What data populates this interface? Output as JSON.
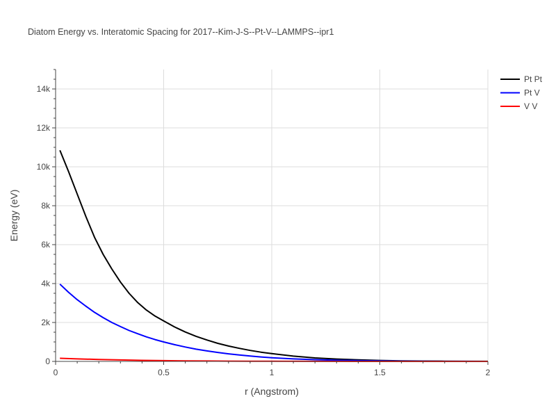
{
  "chart_data": {
    "type": "line",
    "title": "Diatom Energy vs. Interatomic Spacing for 2017--Kim-J-S--Pt-V--LAMMPS--ipr1",
    "xlabel": "r (Angstrom)",
    "ylabel": "Energy (eV)",
    "xlim": [
      0,
      2
    ],
    "ylim": [
      0,
      15000
    ],
    "xticks": [
      0,
      0.5,
      1,
      1.5,
      2
    ],
    "xtick_labels": [
      "0",
      "0.5",
      "1",
      "1.5",
      "2"
    ],
    "yticks": [
      0,
      2000,
      4000,
      6000,
      8000,
      10000,
      12000,
      14000
    ],
    "ytick_labels": [
      "0",
      "2k",
      "4k",
      "6k",
      "8k",
      "10k",
      "12k",
      "14k"
    ],
    "grid": true,
    "legend_position": "top-right",
    "series": [
      {
        "name": "Pt Pt",
        "color": "#000000",
        "x": [
          0.02,
          0.06,
          0.1,
          0.14,
          0.18,
          0.22,
          0.26,
          0.3,
          0.34,
          0.38,
          0.42,
          0.46,
          0.5,
          0.55,
          0.6,
          0.65,
          0.7,
          0.75,
          0.8,
          0.85,
          0.9,
          0.95,
          1.0,
          1.1,
          1.2,
          1.3,
          1.4,
          1.5,
          1.6,
          1.7,
          1.8,
          1.9,
          2.0
        ],
        "y": [
          10850,
          9750,
          8600,
          7450,
          6380,
          5500,
          4750,
          4080,
          3500,
          3020,
          2640,
          2330,
          2080,
          1770,
          1510,
          1290,
          1100,
          930,
          790,
          670,
          565,
          475,
          400,
          270,
          180,
          120,
          80,
          50,
          30,
          18,
          10,
          5,
          2
        ]
      },
      {
        "name": "Pt V",
        "color": "#0000ff",
        "x": [
          0.02,
          0.06,
          0.1,
          0.14,
          0.18,
          0.22,
          0.26,
          0.3,
          0.34,
          0.38,
          0.42,
          0.46,
          0.5,
          0.55,
          0.6,
          0.65,
          0.7,
          0.75,
          0.8,
          0.85,
          0.9,
          0.95,
          1.0,
          1.1,
          1.2,
          1.3,
          1.4,
          1.5,
          1.6,
          1.7,
          1.8,
          1.9,
          2.0
        ],
        "y": [
          3970,
          3550,
          3170,
          2840,
          2520,
          2250,
          2000,
          1790,
          1590,
          1420,
          1260,
          1120,
          1000,
          860,
          740,
          630,
          540,
          460,
          390,
          330,
          275,
          230,
          190,
          130,
          88,
          58,
          38,
          24,
          15,
          9,
          5,
          3,
          1
        ]
      },
      {
        "name": "V V",
        "color": "#ff0000",
        "x": [
          0.02,
          0.1,
          0.2,
          0.3,
          0.4,
          0.5,
          0.6,
          0.7,
          0.8,
          0.9,
          1.0,
          1.2,
          1.4,
          1.6,
          1.8,
          2.0
        ],
        "y": [
          160,
          130,
          100,
          75,
          55,
          40,
          30,
          22,
          15,
          10,
          7,
          3,
          1,
          0.5,
          0.2,
          0
        ]
      }
    ]
  }
}
